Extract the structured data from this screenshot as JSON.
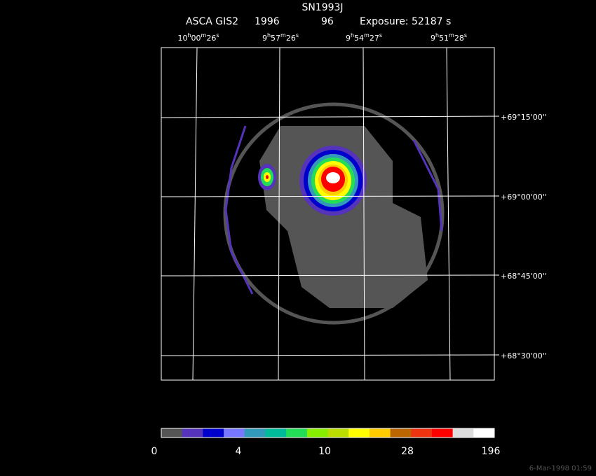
{
  "header": {
    "title": "SN1993J",
    "subtitle": [
      "ASCA GIS2",
      "1996",
      "96",
      "Exposure: 52187 s"
    ]
  },
  "ra_labels": [
    [
      "10",
      "h",
      "00",
      "m",
      "26",
      "s"
    ],
    [
      "9",
      "h",
      "57",
      "m",
      "26",
      "s"
    ],
    [
      "9",
      "h",
      "54",
      "m",
      "27",
      "s"
    ],
    [
      "9",
      "h",
      "51",
      "m",
      "28",
      "s"
    ]
  ],
  "dec_labels": [
    "+69°15'00''",
    "+69°00'00''",
    "+68°45'00''",
    "+68°30'00''"
  ],
  "colorbar": {
    "colors": [
      "#555555",
      "#5533bb",
      "#0000cc",
      "#7777ff",
      "#3399bb",
      "#00bb99",
      "#22dd55",
      "#88ee00",
      "#bbdd00",
      "#ffff00",
      "#ffcc00",
      "#bb6600",
      "#ee3311",
      "#ff0000",
      "#dddddd",
      "#ffffff"
    ],
    "labels": [
      "0",
      "4",
      "10",
      "28",
      "196"
    ]
  },
  "timestamp": "6-Mar-1998 01:59"
}
